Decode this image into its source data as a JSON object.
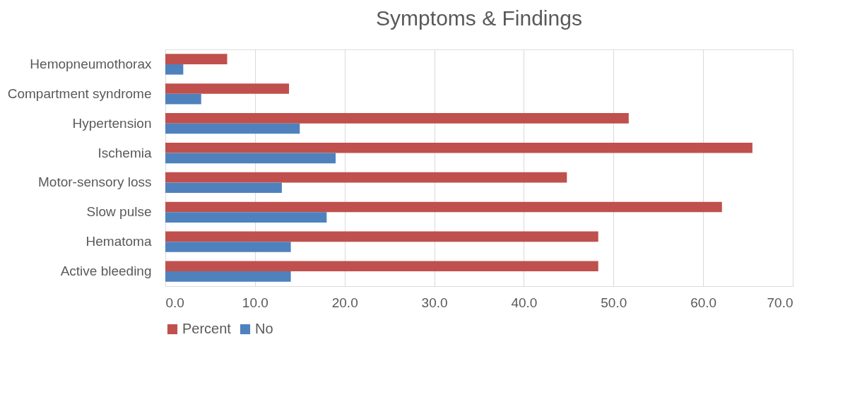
{
  "chart_data": {
    "type": "bar",
    "orientation": "horizontal",
    "title": "Symptoms & Findings",
    "categories": [
      "Hemopneumothorax",
      "Compartment syndrome",
      "Hypertension",
      "Ischemia",
      "Motor-sensory loss",
      "Slow pulse",
      "Hematoma",
      "Active bleeding"
    ],
    "series": [
      {
        "name": "Percent",
        "color": "#c0504d",
        "values": [
          6.9,
          13.8,
          51.7,
          65.5,
          44.8,
          62.1,
          48.3,
          48.3
        ]
      },
      {
        "name": "No",
        "color": "#4f81bd",
        "values": [
          2,
          4,
          15,
          19,
          13,
          18,
          14,
          14
        ]
      }
    ],
    "xlim": [
      0,
      70
    ],
    "xticks": [
      {
        "value": 0,
        "label": "0.0"
      },
      {
        "value": 10,
        "label": "10.0"
      },
      {
        "value": 20,
        "label": "20.0"
      },
      {
        "value": 30,
        "label": "30.0"
      },
      {
        "value": 40,
        "label": "40.0"
      },
      {
        "value": 50,
        "label": "50.0"
      },
      {
        "value": 60,
        "label": "60.0"
      },
      {
        "value": 70,
        "label": "70.0"
      }
    ],
    "grid": "x",
    "legend": "bottom"
  }
}
